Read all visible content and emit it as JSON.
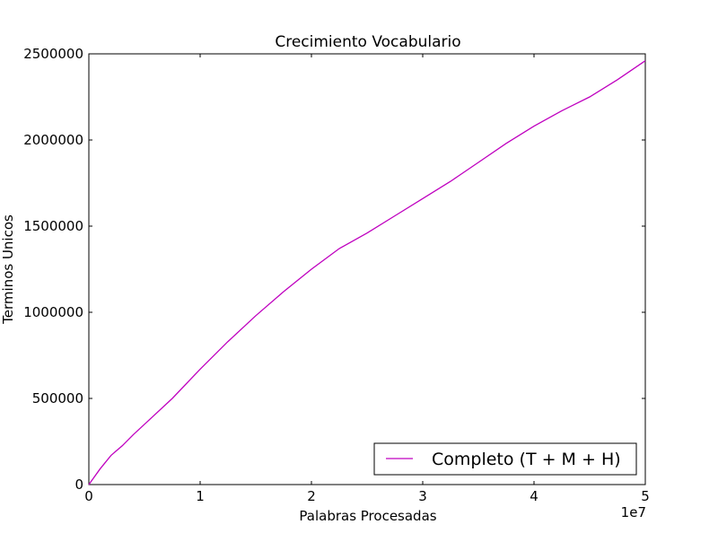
{
  "chart_data": {
    "type": "line",
    "title": "Crecimiento Vocabulario",
    "xlabel": "Palabras Procesadas",
    "ylabel": "Terminos Unicos",
    "x_multiplier_label": "1e7",
    "xlim": [
      0,
      5
    ],
    "ylim": [
      0,
      2500000
    ],
    "xticks": [
      0,
      1,
      2,
      3,
      4,
      5
    ],
    "yticks": [
      0,
      500000,
      1000000,
      1500000,
      2000000,
      2500000
    ],
    "xtick_labels": [
      "0",
      "1",
      "2",
      "3",
      "4",
      "5"
    ],
    "ytick_labels": [
      "0",
      "500000",
      "1000000",
      "1500000",
      "2000000",
      "2500000"
    ],
    "grid": false,
    "legend": {
      "position": "lower-right",
      "entries": [
        "Completo (T + M + H)"
      ]
    },
    "series": [
      {
        "name": "Completo (T + M + H)",
        "color": "#bf00bf",
        "x": [
          0,
          0.1,
          0.2,
          0.3,
          0.4,
          0.5,
          0.75,
          1.0,
          1.25,
          1.5,
          1.75,
          2.0,
          2.25,
          2.5,
          2.75,
          3.0,
          3.25,
          3.5,
          3.75,
          4.0,
          4.25,
          4.5,
          4.75,
          5.0
        ],
        "y": [
          0,
          90000,
          170000,
          225000,
          290000,
          350000,
          500000,
          670000,
          830000,
          980000,
          1120000,
          1250000,
          1370000,
          1460000,
          1560000,
          1660000,
          1760000,
          1870000,
          1980000,
          2080000,
          2170000,
          2250000,
          2350000,
          2460000
        ]
      }
    ]
  }
}
